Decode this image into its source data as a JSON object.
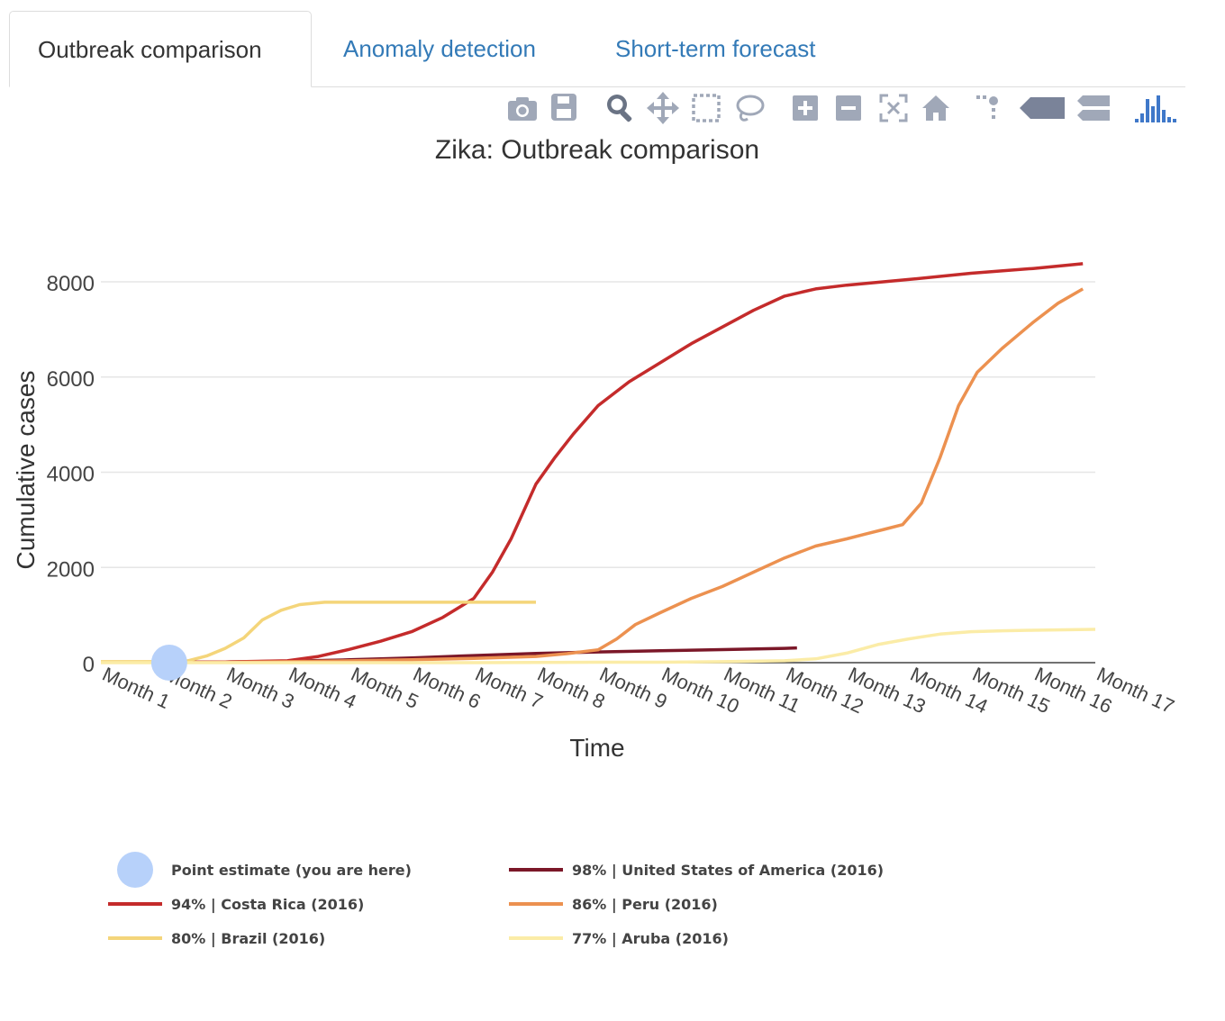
{
  "tabs": [
    {
      "label": "Outbreak comparison",
      "active": true
    },
    {
      "label": "Anomaly detection",
      "active": false
    },
    {
      "label": "Short-term forecast",
      "active": false
    }
  ],
  "toolbar": {
    "icons": [
      "camera-icon",
      "save-icon",
      "zoom-icon",
      "pan-icon",
      "box-select-icon",
      "lasso-select-icon",
      "zoom-in-icon",
      "zoom-out-icon",
      "autoscale-icon",
      "reset-axes-icon",
      "toggle-spike-lines-icon",
      "hover-closest-icon",
      "hover-compare-icon",
      "plotly-logo-icon"
    ]
  },
  "chart_data": {
    "type": "line",
    "title": "Zika: Outbreak comparison",
    "xlabel": "Time",
    "ylabel": "Cumulative cases",
    "categories": [
      "Month 1",
      "Month 2",
      "Month 3",
      "Month 4",
      "Month 5",
      "Month 6",
      "Month 7",
      "Month 8",
      "Month 9",
      "Month 10",
      "Month 11",
      "Month 12",
      "Month 13",
      "Month 14",
      "Month 15",
      "Month 16",
      "Month 17"
    ],
    "ylim": [
      0,
      8700
    ],
    "yticks": [
      0,
      2000,
      4000,
      6000,
      8000
    ],
    "grid": true,
    "legend_position": "bottom",
    "point_estimate": {
      "name": "Point estimate (you are here)",
      "x": 2.1,
      "y": 0,
      "color": "#b7d1fa"
    },
    "series": [
      {
        "name": "98% | United States of America (2016)",
        "color": "#7b1728",
        "x": [
          1,
          2,
          3,
          4,
          5,
          6,
          7,
          8,
          9,
          10,
          11,
          12,
          12.2
        ],
        "y": [
          10,
          10,
          15,
          30,
          60,
          100,
          150,
          195,
          225,
          250,
          275,
          300,
          310
        ]
      },
      {
        "name": "94% | Costa Rica (2016)",
        "color": "#c42b2b",
        "x": [
          1,
          2,
          3,
          4,
          4.5,
          5,
          5.5,
          6,
          6.5,
          7,
          7.3,
          7.6,
          8,
          8.3,
          8.6,
          9,
          9.5,
          10,
          10.5,
          11,
          11.5,
          12,
          12.5,
          13,
          14,
          15,
          16,
          16.8
        ],
        "y": [
          10,
          10,
          15,
          40,
          130,
          280,
          450,
          650,
          950,
          1350,
          1900,
          2600,
          3750,
          4300,
          4800,
          5400,
          5900,
          6300,
          6700,
          7050,
          7400,
          7700,
          7850,
          7930,
          8050,
          8180,
          8280,
          8380
        ]
      },
      {
        "name": "86% | Peru (2016)",
        "color": "#ec9150",
        "x": [
          1,
          2,
          3,
          4,
          5,
          6,
          7,
          8,
          8.5,
          9,
          9.3,
          9.6,
          10,
          10.5,
          11,
          11.5,
          12,
          12.5,
          13,
          13.3,
          13.6,
          13.9,
          14.2,
          14.5,
          14.8,
          15.1,
          15.5,
          16,
          16.4,
          16.8
        ],
        "y": [
          5,
          5,
          10,
          20,
          40,
          60,
          90,
          130,
          190,
          270,
          500,
          800,
          1050,
          1350,
          1600,
          1900,
          2200,
          2450,
          2600,
          2700,
          2800,
          2900,
          3350,
          4300,
          5400,
          6100,
          6600,
          7150,
          7550,
          7850
        ]
      },
      {
        "name": "80% | Brazil (2016)",
        "color": "#f4d57a",
        "x": [
          1,
          2,
          2.4,
          2.7,
          3,
          3.3,
          3.6,
          3.9,
          4.2,
          4.6,
          5,
          6,
          7,
          8
        ],
        "y": [
          20,
          20,
          40,
          140,
          300,
          520,
          900,
          1100,
          1220,
          1270,
          1270,
          1270,
          1270,
          1270
        ]
      },
      {
        "name": "77% | Aruba (2016)",
        "color": "#fbeca7",
        "x": [
          1,
          2,
          3,
          4,
          5,
          6,
          7,
          8,
          9,
          10,
          11,
          12,
          12.5,
          13,
          13.5,
          14,
          14.5,
          15,
          15.5,
          16,
          16.5,
          17
        ],
        "y": [
          0,
          0,
          0,
          0,
          0,
          0,
          0,
          5,
          10,
          10,
          20,
          40,
          80,
          200,
          380,
          500,
          600,
          650,
          670,
          680,
          690,
          700
        ]
      }
    ]
  }
}
